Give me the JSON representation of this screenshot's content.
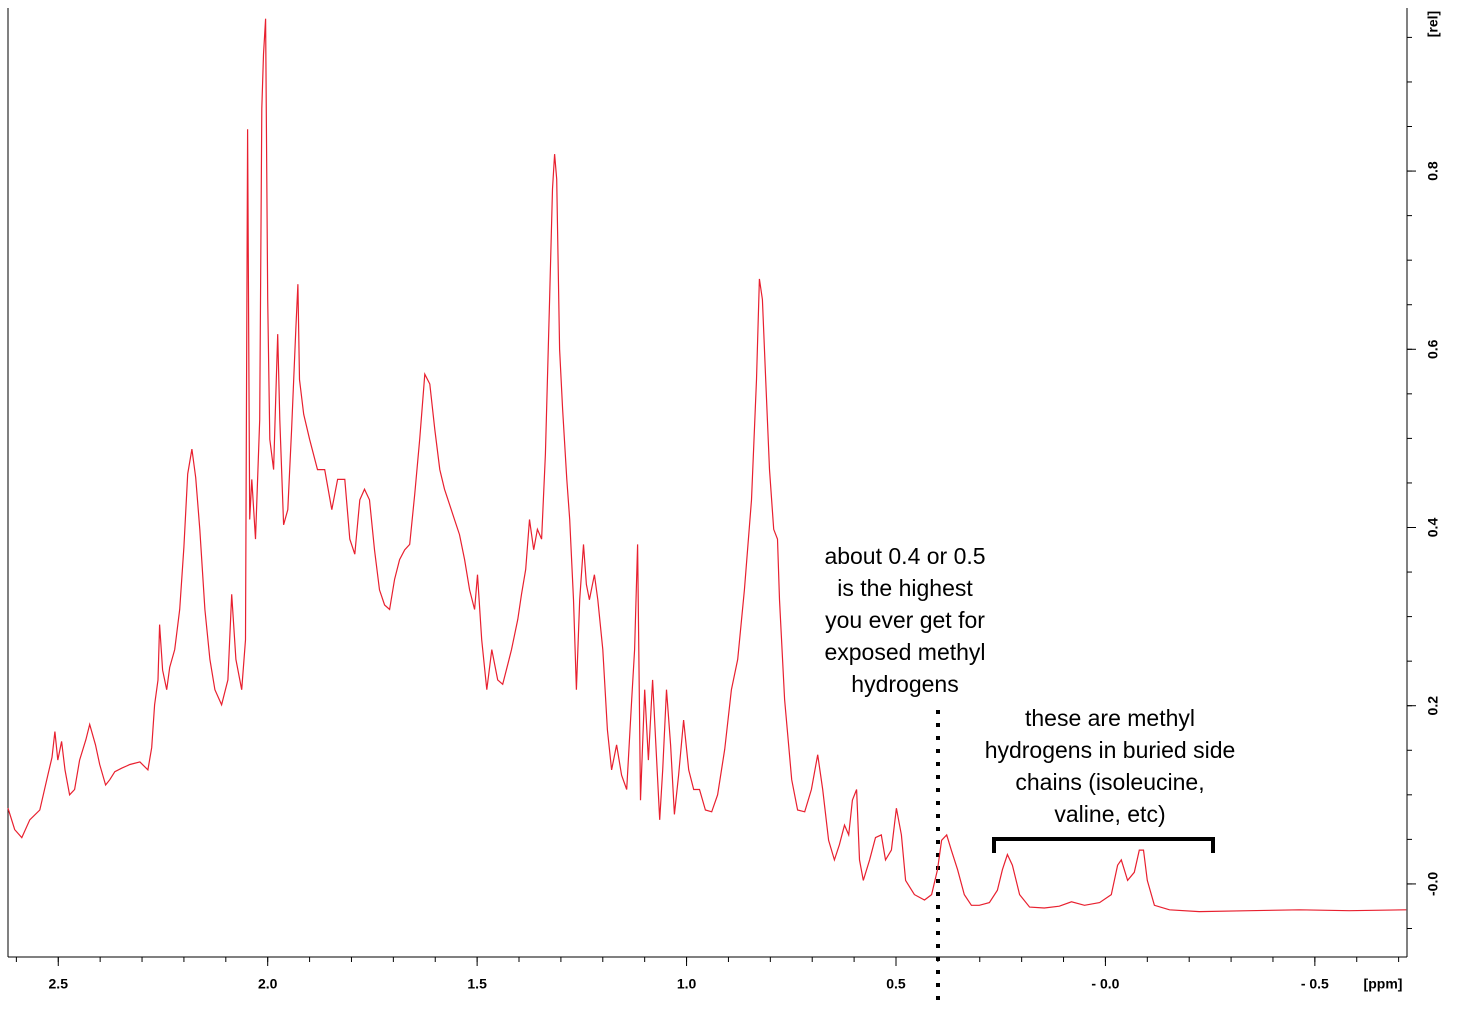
{
  "chart_data": {
    "type": "line",
    "xlabel": "[ppm]",
    "ylabel": "[rel]",
    "color": "#e8202f",
    "xlim": [
      2.62,
      -0.72
    ],
    "ylim": [
      -0.082,
      0.983
    ],
    "xticks": [
      2.5,
      {
        "value": 2,
        "label": "2.0"
      },
      1.5,
      {
        "value": 1,
        "label": "1.0"
      },
      0.5,
      {
        "value": 0,
        "label": "- 0.0"
      },
      {
        "value": -0.5,
        "label": "- 0.5"
      }
    ],
    "yticks": [
      {
        "value": 0,
        "label": "-0.0"
      },
      0.2,
      0.4,
      0.6,
      0.8
    ],
    "xminor_ticks": [
      2.6,
      2.5,
      2.4,
      2.3,
      2.2,
      2.1,
      2.0,
      1.9,
      1.8,
      1.7,
      1.6,
      1.5,
      1.4,
      1.3,
      1.2,
      1.1,
      1.0,
      0.9,
      0.8,
      0.7,
      0.6,
      0.5,
      0.4,
      0.3,
      0.2,
      0.1,
      0,
      -0.1,
      -0.2,
      -0.3,
      -0.4,
      -0.5,
      -0.6,
      -0.7
    ],
    "yminor_ticks": [
      -0.05,
      0,
      0.05,
      0.1,
      0.15,
      0.2,
      0.25,
      0.3,
      0.35,
      0.4,
      0.45,
      0.5,
      0.55,
      0.6,
      0.65,
      0.7,
      0.75,
      0.8,
      0.85,
      0.9,
      0.95
    ],
    "x": [
      2.62,
      2.604,
      2.587,
      2.568,
      2.544,
      2.525,
      2.515,
      2.508,
      2.501,
      2.492,
      2.484,
      2.473,
      2.461,
      2.449,
      2.434,
      2.425,
      2.411,
      2.401,
      2.387,
      2.377,
      2.365,
      2.348,
      2.329,
      2.305,
      2.286,
      2.277,
      2.27,
      2.262,
      2.258,
      2.251,
      2.241,
      2.234,
      2.222,
      2.21,
      2.2,
      2.191,
      2.181,
      2.172,
      2.162,
      2.15,
      2.138,
      2.126,
      2.11,
      2.095,
      2.086,
      2.076,
      2.062,
      2.053,
      2.048,
      2.043,
      2.038,
      2.029,
      2.019,
      2.014,
      2.01,
      2.005,
      2.0,
      1.995,
      1.986,
      1.981,
      1.976,
      1.971,
      1.962,
      1.952,
      1.943,
      1.933,
      1.928,
      1.924,
      1.914,
      1.9,
      1.881,
      1.864,
      1.847,
      1.833,
      1.816,
      1.804,
      1.792,
      1.78,
      1.769,
      1.757,
      1.745,
      1.733,
      1.721,
      1.709,
      1.697,
      1.685,
      1.673,
      1.661,
      1.649,
      1.637,
      1.625,
      1.613,
      1.601,
      1.589,
      1.578,
      1.566,
      1.554,
      1.542,
      1.53,
      1.518,
      1.506,
      1.499,
      1.489,
      1.477,
      1.465,
      1.451,
      1.439,
      1.427,
      1.418,
      1.403,
      1.394,
      1.384,
      1.375,
      1.365,
      1.356,
      1.346,
      1.337,
      1.327,
      1.32,
      1.315,
      1.31,
      1.303,
      1.296,
      1.286,
      1.279,
      1.27,
      1.263,
      1.255,
      1.246,
      1.239,
      1.232,
      1.22,
      1.212,
      1.2,
      1.189,
      1.179,
      1.167,
      1.155,
      1.143,
      1.131,
      1.124,
      1.117,
      1.11,
      1.1,
      1.091,
      1.081,
      1.074,
      1.064,
      1.057,
      1.048,
      1.038,
      1.029,
      1.019,
      1.007,
      0.995,
      0.983,
      0.969,
      0.955,
      0.94,
      0.926,
      0.909,
      0.893,
      0.878,
      0.862,
      0.845,
      0.833,
      0.826,
      0.819,
      0.811,
      0.802,
      0.792,
      0.783,
      0.778,
      0.766,
      0.749,
      0.735,
      0.718,
      0.702,
      0.687,
      0.675,
      0.661,
      0.647,
      0.635,
      0.623,
      0.613,
      0.604,
      0.594,
      0.587,
      0.578,
      0.563,
      0.549,
      0.535,
      0.525,
      0.511,
      0.499,
      0.487,
      0.477,
      0.456,
      0.432,
      0.415,
      0.401,
      0.391,
      0.379,
      0.368,
      0.353,
      0.337,
      0.32,
      0.301,
      0.277,
      0.258,
      0.246,
      0.234,
      0.222,
      0.205,
      0.181,
      0.146,
      0.11,
      0.081,
      0.05,
      0.014,
      -0.014,
      -0.029,
      -0.038,
      -0.053,
      -0.069,
      -0.081,
      -0.091,
      -0.1,
      -0.117,
      -0.153,
      -0.224,
      -0.344,
      -0.463,
      -0.582,
      -0.718
    ],
    "values": [
      0.085,
      0.061,
      0.052,
      0.072,
      0.083,
      0.122,
      0.142,
      0.171,
      0.139,
      0.16,
      0.128,
      0.1,
      0.106,
      0.139,
      0.162,
      0.179,
      0.156,
      0.134,
      0.111,
      0.117,
      0.126,
      0.13,
      0.134,
      0.137,
      0.128,
      0.153,
      0.201,
      0.229,
      0.291,
      0.24,
      0.218,
      0.243,
      0.263,
      0.308,
      0.378,
      0.46,
      0.488,
      0.456,
      0.398,
      0.308,
      0.252,
      0.218,
      0.201,
      0.229,
      0.325,
      0.252,
      0.218,
      0.274,
      0.847,
      0.409,
      0.454,
      0.387,
      0.521,
      0.87,
      0.931,
      0.971,
      0.656,
      0.499,
      0.465,
      0.544,
      0.617,
      0.521,
      0.403,
      0.42,
      0.51,
      0.622,
      0.673,
      0.566,
      0.527,
      0.499,
      0.465,
      0.465,
      0.42,
      0.454,
      0.454,
      0.387,
      0.37,
      0.431,
      0.443,
      0.431,
      0.375,
      0.33,
      0.313,
      0.308,
      0.342,
      0.364,
      0.375,
      0.381,
      0.437,
      0.499,
      0.572,
      0.561,
      0.51,
      0.465,
      0.443,
      0.426,
      0.409,
      0.392,
      0.364,
      0.33,
      0.308,
      0.347,
      0.274,
      0.218,
      0.263,
      0.229,
      0.224,
      0.246,
      0.263,
      0.297,
      0.325,
      0.353,
      0.409,
      0.375,
      0.398,
      0.387,
      0.482,
      0.656,
      0.78,
      0.819,
      0.791,
      0.6,
      0.533,
      0.454,
      0.409,
      0.319,
      0.218,
      0.319,
      0.381,
      0.336,
      0.319,
      0.347,
      0.319,
      0.263,
      0.173,
      0.128,
      0.156,
      0.122,
      0.106,
      0.207,
      0.263,
      0.381,
      0.094,
      0.218,
      0.139,
      0.229,
      0.162,
      0.072,
      0.128,
      0.218,
      0.156,
      0.078,
      0.122,
      0.184,
      0.128,
      0.106,
      0.106,
      0.083,
      0.081,
      0.1,
      0.151,
      0.218,
      0.252,
      0.33,
      0.431,
      0.566,
      0.679,
      0.656,
      0.566,
      0.465,
      0.398,
      0.387,
      0.319,
      0.207,
      0.117,
      0.083,
      0.081,
      0.106,
      0.145,
      0.106,
      0.049,
      0.027,
      0.044,
      0.066,
      0.055,
      0.094,
      0.106,
      0.027,
      0.004,
      0.027,
      0.052,
      0.055,
      0.027,
      0.038,
      0.085,
      0.055,
      0.004,
      -0.012,
      -0.018,
      -0.012,
      0.016,
      0.049,
      0.055,
      0.038,
      0.016,
      -0.012,
      -0.024,
      -0.024,
      -0.021,
      -0.007,
      0.016,
      0.033,
      0.021,
      -0.012,
      -0.026,
      -0.027,
      -0.025,
      -0.02,
      -0.024,
      -0.021,
      -0.012,
      0.021,
      0.027,
      0.004,
      0.013,
      0.038,
      0.038,
      0.004,
      -0.024,
      -0.029,
      -0.031,
      -0.03,
      -0.029,
      -0.03,
      -0.029
    ],
    "annotations": [
      {
        "lines": [
          "about 0.4 or 0.5",
          "is the highest",
          "you ever get for",
          "exposed methyl",
          "hydrogens"
        ]
      },
      {
        "lines": [
          "these are methyl",
          "hydrogens in buried side",
          "chains (isoleucine,",
          "valine, etc)"
        ]
      }
    ]
  }
}
